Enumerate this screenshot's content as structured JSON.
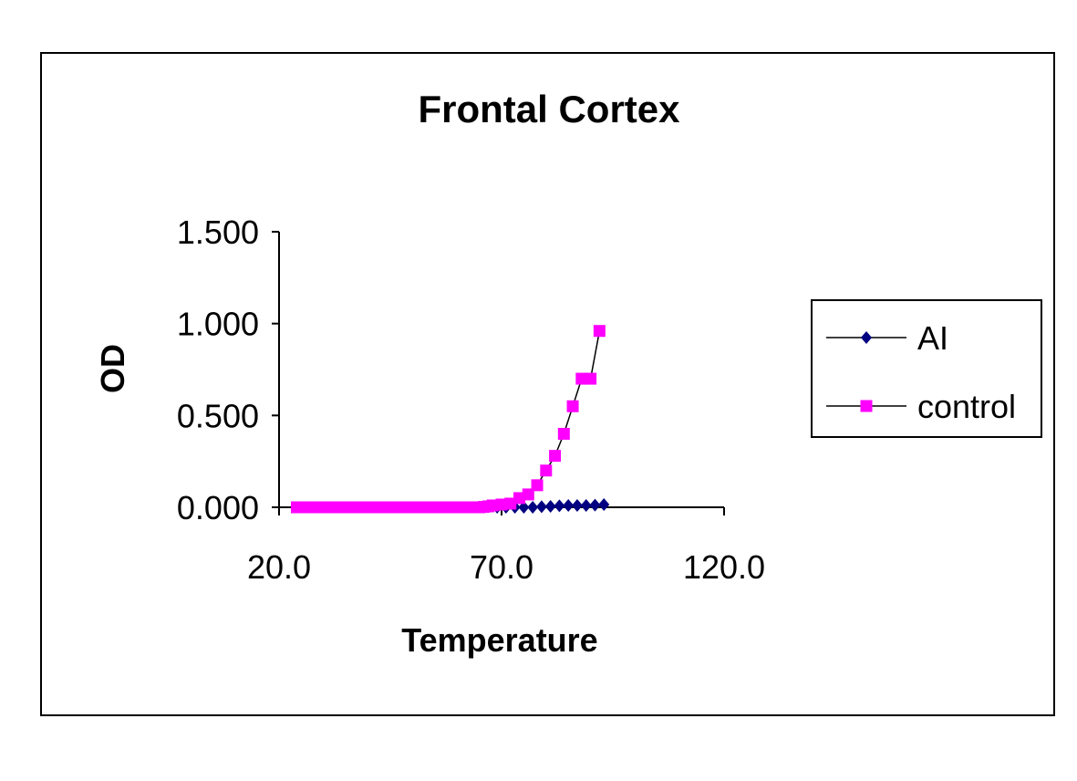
{
  "chart_data": {
    "type": "line",
    "title": "Frontal Cortex",
    "xlabel": "Temperature",
    "ylabel": "OD",
    "xlim": [
      20.0,
      120.0
    ],
    "ylim": [
      0.0,
      1.5
    ],
    "x_ticks": [
      20.0,
      70.0,
      120.0
    ],
    "x_tick_labels": [
      "20.0",
      "70.0",
      "120.0"
    ],
    "y_ticks": [
      0.0,
      0.5,
      1.0,
      1.5
    ],
    "y_tick_labels": [
      "0.000",
      "0.500",
      "1.000",
      "1.500"
    ],
    "grid": false,
    "legend_position": "right",
    "series": [
      {
        "name": "AI",
        "color": "#000080",
        "marker": "diamond",
        "line_color": "#000000",
        "x": [
          69.0,
          71.0,
          73.0,
          75.0,
          77.0,
          79.0,
          81.0,
          83.0,
          85.0,
          87.0,
          89.0,
          91.0,
          93.0
        ],
        "y": [
          0.0,
          0.0,
          0.0,
          0.0,
          0.0,
          0.003,
          0.005,
          0.008,
          0.01,
          0.01,
          0.01,
          0.012,
          0.015
        ]
      },
      {
        "name": "control",
        "color": "#ff00ff",
        "marker": "square",
        "line_color": "#000000",
        "x": [
          24,
          25,
          26,
          27,
          28,
          29,
          30,
          31,
          32,
          33,
          34,
          35,
          36,
          37,
          38,
          39,
          40,
          41,
          42,
          43,
          44,
          45,
          46,
          47,
          48,
          49,
          50,
          51,
          52,
          53,
          54,
          55,
          56,
          57,
          58,
          59,
          60,
          61,
          62,
          63,
          64,
          65,
          66,
          67,
          68,
          70,
          72,
          74,
          76,
          78,
          80,
          82,
          84,
          86,
          88,
          90,
          92
        ],
        "y": [
          0,
          0,
          0,
          0,
          0,
          0,
          0,
          0,
          0,
          0,
          0,
          0,
          0,
          0,
          0,
          0,
          0,
          0,
          0,
          0,
          0,
          0,
          0,
          0,
          0,
          0,
          0,
          0,
          0,
          0,
          0,
          0,
          0,
          0,
          0,
          0,
          0,
          0,
          0,
          0,
          0,
          0,
          0.002,
          0.005,
          0.01,
          0.015,
          0.02,
          0.05,
          0.07,
          0.12,
          0.2,
          0.28,
          0.4,
          0.55,
          0.7,
          0.7,
          0.96
        ]
      }
    ]
  }
}
